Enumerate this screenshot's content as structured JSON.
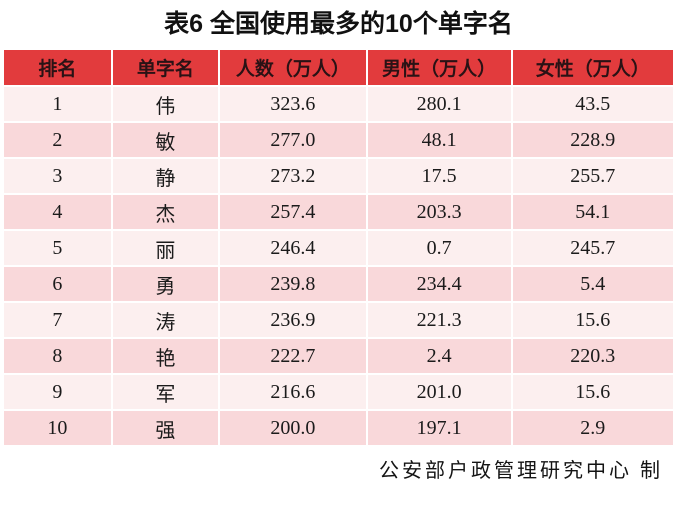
{
  "title": "表6 全国使用最多的10个单字名",
  "table": {
    "columns": [
      "排名",
      "单字名",
      "人数（万人）",
      "男性（万人）",
      "女性（万人）"
    ],
    "rows": [
      [
        "1",
        "伟",
        "323.6",
        "280.1",
        "43.5"
      ],
      [
        "2",
        "敏",
        "277.0",
        "48.1",
        "228.9"
      ],
      [
        "3",
        "静",
        "273.2",
        "17.5",
        "255.7"
      ],
      [
        "4",
        "杰",
        "257.4",
        "203.3",
        "54.1"
      ],
      [
        "5",
        "丽",
        "246.4",
        "0.7",
        "245.7"
      ],
      [
        "6",
        "勇",
        "239.8",
        "234.4",
        "5.4"
      ],
      [
        "7",
        "涛",
        "236.9",
        "221.3",
        "15.6"
      ],
      [
        "8",
        "艳",
        "222.7",
        "2.4",
        "220.3"
      ],
      [
        "9",
        "军",
        "216.6",
        "201.0",
        "15.6"
      ],
      [
        "10",
        "强",
        "200.0",
        "197.1",
        "2.9"
      ]
    ]
  },
  "footer": {
    "credit": "公安部户政管理研究中心 制"
  },
  "colors": {
    "header_bg": "#e23b3d",
    "header_text": "#2a1215",
    "row_odd_bg": "#fcefef",
    "row_even_bg": "#f9d8da",
    "separator": "#ffffff",
    "body_text": "#1b1b1b"
  },
  "chart_data": {
    "type": "table",
    "title": "表6 全国使用最多的10个单字名",
    "columns": [
      "排名",
      "单字名",
      "人数（万人）",
      "男性（万人）",
      "女性（万人）"
    ],
    "rows": [
      [
        1,
        "伟",
        323.6,
        280.1,
        43.5
      ],
      [
        2,
        "敏",
        277.0,
        48.1,
        228.9
      ],
      [
        3,
        "静",
        273.2,
        17.5,
        255.7
      ],
      [
        4,
        "杰",
        257.4,
        203.3,
        54.1
      ],
      [
        5,
        "丽",
        246.4,
        0.7,
        245.7
      ],
      [
        6,
        "勇",
        239.8,
        234.4,
        5.4
      ],
      [
        7,
        "涛",
        236.9,
        221.3,
        15.6
      ],
      [
        8,
        "艳",
        222.7,
        2.4,
        220.3
      ],
      [
        9,
        "军",
        216.6,
        201.0,
        15.6
      ],
      [
        10,
        "强",
        200.0,
        197.1,
        2.9
      ]
    ],
    "annotation": "公安部户政管理研究中心 制",
    "layout": "alternating pink rows, red header, white cell separators"
  }
}
